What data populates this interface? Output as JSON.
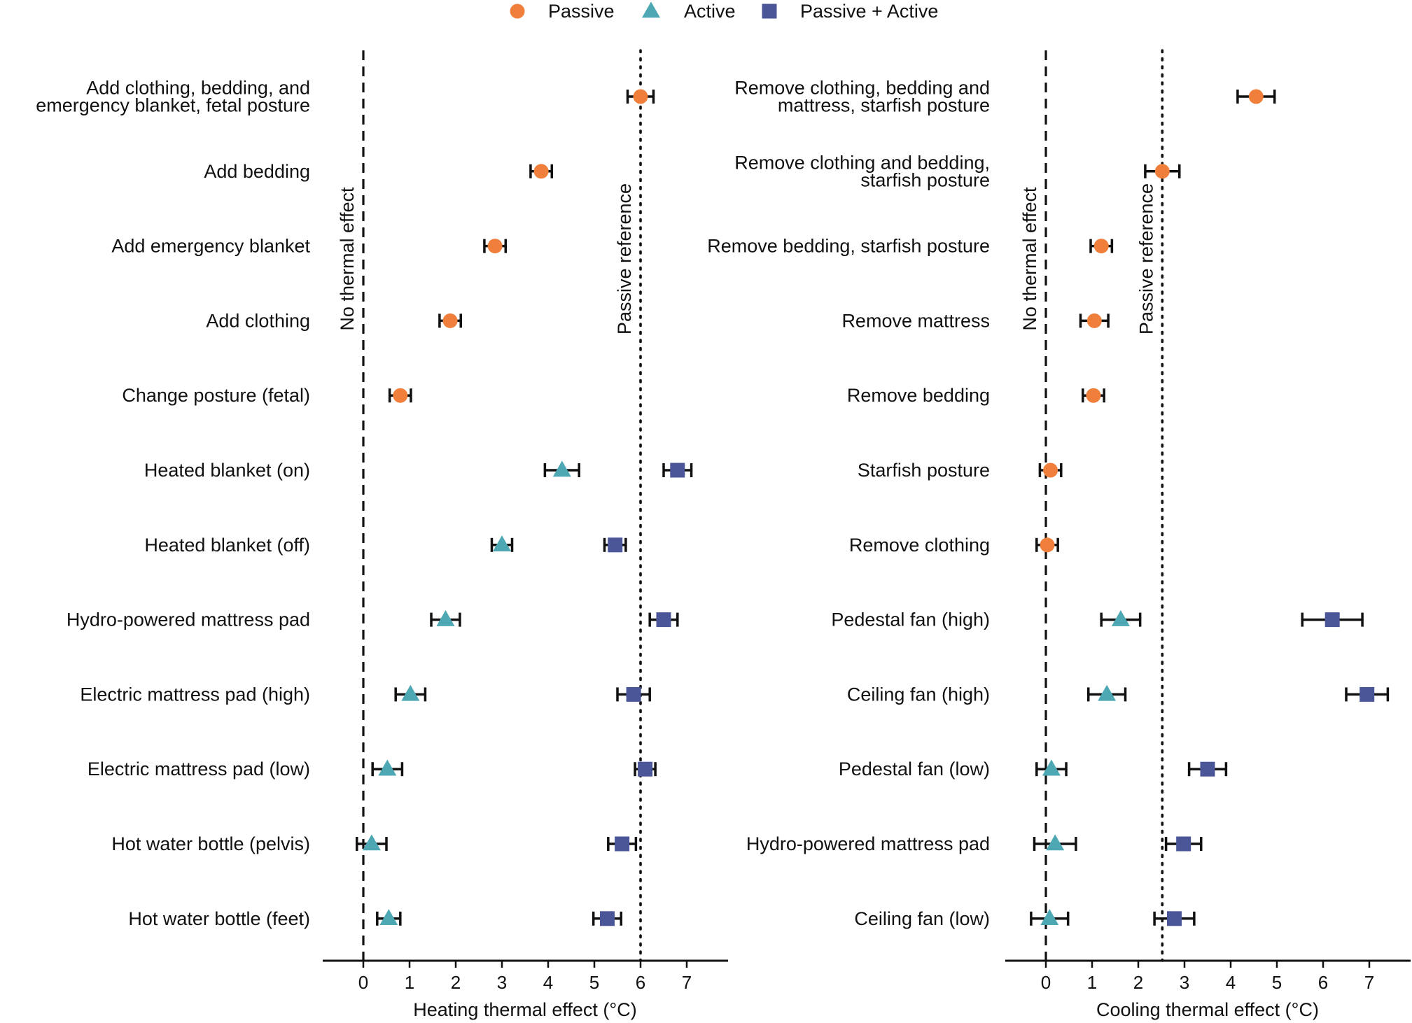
{
  "legend": [
    {
      "name": "Passive",
      "shape": "circle",
      "color": "#F07F3C"
    },
    {
      "name": "Active",
      "shape": "triangle",
      "color": "#4EA8B4"
    },
    {
      "name": "Passive + Active",
      "shape": "square",
      "color": "#4B5699"
    }
  ],
  "chart_data": [
    {
      "type": "scatter",
      "panel": "left",
      "xlabel": "Heating thermal effect (°C)",
      "xlim": [
        -0.9,
        7.9
      ],
      "xticks": [
        0,
        1,
        2,
        3,
        4,
        5,
        6,
        7
      ],
      "grid": false,
      "legend_position": "top-center",
      "reference_lines": [
        {
          "label": "No thermal effect",
          "x": 0,
          "style": "dashed"
        },
        {
          "label": "Passive reference",
          "x": 6.0,
          "style": "dotted"
        }
      ],
      "categories": [
        "Add clothing, bedding, and\nemergency blanket, fetal posture",
        "Add bedding",
        "Add emergency blanket",
        "Add clothing",
        "Change posture (fetal)",
        "Heated blanket (on)",
        "Heated blanket (off)",
        "Hydro-powered mattress pad",
        "Electric mattress pad (high)",
        "Electric mattress pad (low)",
        "Hot water bottle (pelvis)",
        "Hot water bottle (feet)"
      ],
      "points": [
        {
          "row": 0,
          "series": "Passive",
          "x": 6.0,
          "low": 5.72,
          "high": 6.28
        },
        {
          "row": 1,
          "series": "Passive",
          "x": 3.85,
          "low": 3.62,
          "high": 4.08
        },
        {
          "row": 2,
          "series": "Passive",
          "x": 2.85,
          "low": 2.62,
          "high": 3.08
        },
        {
          "row": 3,
          "series": "Passive",
          "x": 1.88,
          "low": 1.65,
          "high": 2.11
        },
        {
          "row": 4,
          "series": "Passive",
          "x": 0.8,
          "low": 0.57,
          "high": 1.03
        },
        {
          "row": 5,
          "series": "Active",
          "x": 4.3,
          "low": 3.93,
          "high": 4.67
        },
        {
          "row": 5,
          "series": "Passive + Active",
          "x": 6.8,
          "low": 6.5,
          "high": 7.1
        },
        {
          "row": 6,
          "series": "Active",
          "x": 3.0,
          "low": 2.78,
          "high": 3.22
        },
        {
          "row": 6,
          "series": "Passive + Active",
          "x": 5.45,
          "low": 5.22,
          "high": 5.68
        },
        {
          "row": 7,
          "series": "Active",
          "x": 1.78,
          "low": 1.47,
          "high": 2.09
        },
        {
          "row": 7,
          "series": "Passive + Active",
          "x": 6.5,
          "low": 6.2,
          "high": 6.8
        },
        {
          "row": 8,
          "series": "Active",
          "x": 1.02,
          "low": 0.7,
          "high": 1.34
        },
        {
          "row": 8,
          "series": "Passive + Active",
          "x": 5.85,
          "low": 5.5,
          "high": 6.2
        },
        {
          "row": 9,
          "series": "Active",
          "x": 0.52,
          "low": 0.2,
          "high": 0.84
        },
        {
          "row": 9,
          "series": "Passive + Active",
          "x": 6.1,
          "low": 5.88,
          "high": 6.32
        },
        {
          "row": 10,
          "series": "Active",
          "x": 0.18,
          "low": -0.14,
          "high": 0.5
        },
        {
          "row": 10,
          "series": "Passive + Active",
          "x": 5.6,
          "low": 5.3,
          "high": 5.9
        },
        {
          "row": 11,
          "series": "Active",
          "x": 0.55,
          "low": 0.3,
          "high": 0.8
        },
        {
          "row": 11,
          "series": "Passive + Active",
          "x": 5.28,
          "low": 4.98,
          "high": 5.58
        }
      ]
    },
    {
      "type": "scatter",
      "panel": "right",
      "xlabel": "Cooling thermal effect (°C)",
      "xlim": [
        -0.9,
        7.9
      ],
      "xticks": [
        0,
        1,
        2,
        3,
        4,
        5,
        6,
        7
      ],
      "grid": false,
      "reference_lines": [
        {
          "label": "No thermal effect",
          "x": 0,
          "style": "dashed"
        },
        {
          "label": "Passive reference",
          "x": 2.52,
          "style": "dotted"
        }
      ],
      "categories": [
        "Remove clothing, bedding and\nmattress, starfish posture",
        "Remove clothing and bedding,\nstarfish posture",
        "Remove bedding, starfish posture",
        "Remove mattress",
        "Remove bedding",
        "Starfish posture",
        "Remove clothing",
        "Pedestal fan (high)",
        "Ceiling fan (high)",
        "Pedestal fan (low)",
        "Hydro-powered mattress pad",
        "Ceiling fan (low)"
      ],
      "points": [
        {
          "row": 0,
          "series": "Passive",
          "x": 4.55,
          "low": 4.15,
          "high": 4.95
        },
        {
          "row": 1,
          "series": "Passive",
          "x": 2.52,
          "low": 2.15,
          "high": 2.89
        },
        {
          "row": 2,
          "series": "Passive",
          "x": 1.2,
          "low": 0.97,
          "high": 1.43
        },
        {
          "row": 3,
          "series": "Passive",
          "x": 1.05,
          "low": 0.75,
          "high": 1.35
        },
        {
          "row": 4,
          "series": "Passive",
          "x": 1.03,
          "low": 0.8,
          "high": 1.26
        },
        {
          "row": 5,
          "series": "Passive",
          "x": 0.1,
          "low": -0.13,
          "high": 0.33
        },
        {
          "row": 6,
          "series": "Passive",
          "x": 0.03,
          "low": -0.2,
          "high": 0.26
        },
        {
          "row": 7,
          "series": "Active",
          "x": 1.62,
          "low": 1.2,
          "high": 2.04
        },
        {
          "row": 7,
          "series": "Passive + Active",
          "x": 6.2,
          "low": 5.55,
          "high": 6.85
        },
        {
          "row": 8,
          "series": "Active",
          "x": 1.32,
          "low": 0.92,
          "high": 1.72
        },
        {
          "row": 8,
          "series": "Passive + Active",
          "x": 6.95,
          "low": 6.5,
          "high": 7.4
        },
        {
          "row": 9,
          "series": "Active",
          "x": 0.12,
          "low": -0.2,
          "high": 0.44
        },
        {
          "row": 9,
          "series": "Passive + Active",
          "x": 3.5,
          "low": 3.1,
          "high": 3.9
        },
        {
          "row": 10,
          "series": "Active",
          "x": 0.2,
          "low": -0.25,
          "high": 0.65
        },
        {
          "row": 10,
          "series": "Passive + Active",
          "x": 2.98,
          "low": 2.6,
          "high": 3.36
        },
        {
          "row": 11,
          "series": "Active",
          "x": 0.08,
          "low": -0.32,
          "high": 0.48
        },
        {
          "row": 11,
          "series": "Passive + Active",
          "x": 2.78,
          "low": 2.35,
          "high": 3.21
        }
      ]
    }
  ]
}
